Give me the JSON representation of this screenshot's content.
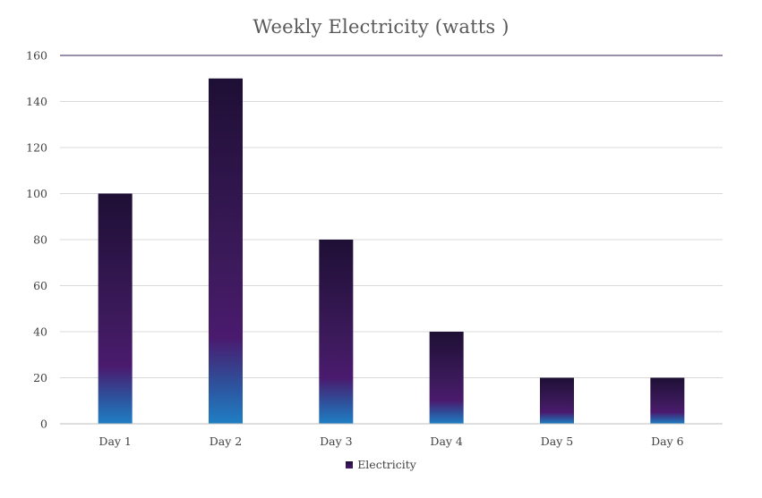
{
  "chart_data": {
    "type": "bar",
    "title": "Weekly Electricity (watts )",
    "xlabel": "",
    "ylabel": "",
    "categories": [
      "Day 1",
      "Day 2",
      "Day 3",
      "Day 4",
      "Day 5",
      "Day 6"
    ],
    "series": [
      {
        "name": "Electricity",
        "values": [
          100,
          150,
          80,
          40,
          20,
          20
        ]
      }
    ],
    "ylim": [
      0,
      160
    ],
    "yticks": [
      0,
      20,
      40,
      60,
      80,
      100,
      120,
      140,
      160
    ],
    "grid": true,
    "legend_position": "bottom",
    "colors": {
      "bar_top": "#1e0f35",
      "bar_mid": "#4a1a6e",
      "bar_bottom": "#1f7fc4",
      "plot_border_top": "#3a1f5a",
      "plot_border_left": "#9ad6ee",
      "gridline": "#d9d9d9",
      "axis_text": "#404040"
    }
  }
}
